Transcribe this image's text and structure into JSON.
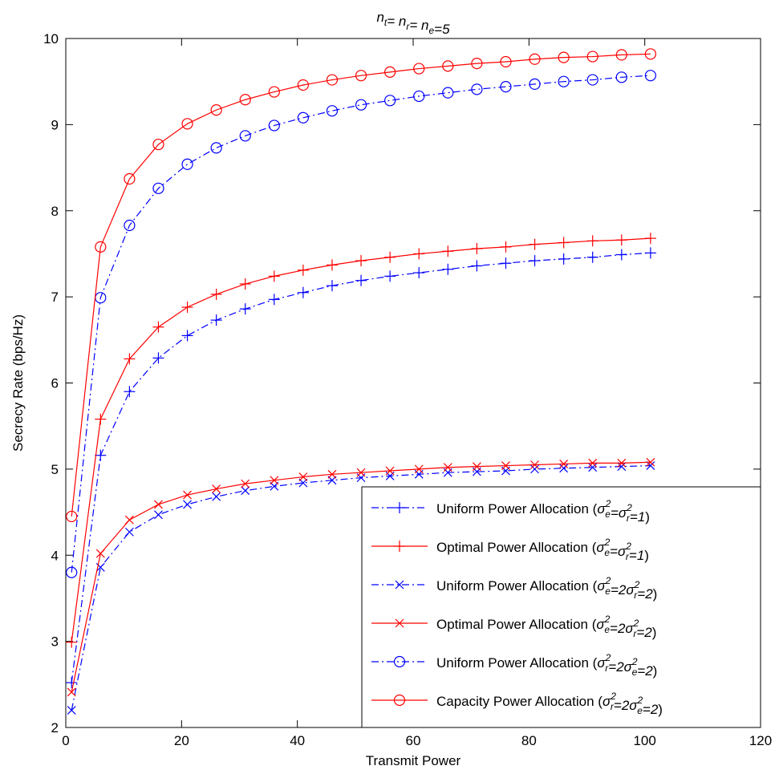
{
  "chart_data": {
    "type": "line",
    "title": {
      "main": "n",
      "parts": [
        {
          "t": "n"
        },
        {
          "sub": "t"
        },
        {
          "t": "= n"
        },
        {
          "sub": "r"
        },
        {
          "t": "= n"
        },
        {
          "sub": "e"
        },
        {
          "t": "=5"
        }
      ]
    },
    "xlabel": "Transmit Power",
    "ylabel": "Secrecy Rate (bps/Hz)",
    "xlim": [
      0,
      120
    ],
    "ylim": [
      2,
      10
    ],
    "xticks": [
      0,
      20,
      40,
      60,
      80,
      100,
      120
    ],
    "yticks": [
      2,
      3,
      4,
      5,
      6,
      7,
      8,
      9,
      10
    ],
    "grid": false,
    "legend_position": "bottom-right",
    "x": [
      1,
      6,
      11,
      16,
      21,
      26,
      31,
      36,
      41,
      46,
      51,
      56,
      61,
      66,
      71,
      76,
      81,
      86,
      91,
      96,
      101
    ],
    "series": [
      {
        "label_prefix": "Uniform Power Allocation (",
        "label_math": [
          {
            "t": "σ"
          },
          {
            "sub": "e",
            "sup": "2"
          },
          {
            "t": "=σ"
          },
          {
            "sub": "r",
            "sup": "2"
          },
          {
            "t": "=1"
          }
        ],
        "label_suffix": ")",
        "color": "#0000ff",
        "dash": "dashdot",
        "marker": "plus",
        "values": [
          2.52,
          5.16,
          5.9,
          6.29,
          6.55,
          6.73,
          6.86,
          6.97,
          7.05,
          7.13,
          7.19,
          7.24,
          7.28,
          7.32,
          7.36,
          7.39,
          7.42,
          7.44,
          7.46,
          7.49,
          7.51
        ]
      },
      {
        "label_prefix": "Optimal Power Allocation (",
        "label_math": [
          {
            "t": "σ"
          },
          {
            "sub": "e",
            "sup": "2"
          },
          {
            "t": "=σ"
          },
          {
            "sub": "r",
            "sup": "2"
          },
          {
            "t": "=1"
          }
        ],
        "label_suffix": ")",
        "color": "#ff0000",
        "dash": "solid",
        "marker": "plus",
        "values": [
          2.99,
          5.58,
          6.28,
          6.65,
          6.88,
          7.03,
          7.15,
          7.24,
          7.31,
          7.37,
          7.42,
          7.46,
          7.5,
          7.53,
          7.56,
          7.58,
          7.61,
          7.63,
          7.65,
          7.66,
          7.68
        ]
      },
      {
        "label_prefix": "Uniform Power Allocation (",
        "label_math": [
          {
            "t": "σ"
          },
          {
            "sub": "e",
            "sup": "2"
          },
          {
            "t": "=2σ"
          },
          {
            "sub": "r",
            "sup": "2"
          },
          {
            "t": "=2"
          }
        ],
        "label_suffix": ")",
        "color": "#0000ff",
        "dash": "dashdot",
        "marker": "x",
        "values": [
          2.2,
          3.86,
          4.27,
          4.47,
          4.59,
          4.68,
          4.75,
          4.8,
          4.84,
          4.87,
          4.9,
          4.92,
          4.94,
          4.96,
          4.97,
          4.98,
          5.0,
          5.01,
          5.02,
          5.03,
          5.04
        ]
      },
      {
        "label_prefix": "Optimal Power Allocation (",
        "label_math": [
          {
            "t": "σ"
          },
          {
            "sub": "e",
            "sup": "2"
          },
          {
            "t": "=2σ"
          },
          {
            "sub": "r",
            "sup": "2"
          },
          {
            "t": "=2"
          }
        ],
        "label_suffix": ")",
        "color": "#ff0000",
        "dash": "solid",
        "marker": "x",
        "values": [
          2.41,
          4.02,
          4.41,
          4.59,
          4.7,
          4.77,
          4.83,
          4.87,
          4.91,
          4.94,
          4.96,
          4.98,
          5.0,
          5.02,
          5.03,
          5.04,
          5.05,
          5.06,
          5.07,
          5.07,
          5.08
        ]
      },
      {
        "label_prefix": "Uniform Power Allocation (",
        "label_math": [
          {
            "t": "σ"
          },
          {
            "sub": "r",
            "sup": "2"
          },
          {
            "t": "=2σ"
          },
          {
            "sub": "e",
            "sup": "2"
          },
          {
            "t": "=2"
          }
        ],
        "label_suffix": ")",
        "color": "#0000ff",
        "dash": "dashdot",
        "marker": "circle",
        "values": [
          3.8,
          6.99,
          7.83,
          8.26,
          8.54,
          8.73,
          8.87,
          8.99,
          9.08,
          9.16,
          9.23,
          9.28,
          9.33,
          9.37,
          9.41,
          9.44,
          9.47,
          9.5,
          9.52,
          9.55,
          9.57
        ]
      },
      {
        "label_prefix": "Capacity Power Allocation (",
        "label_math": [
          {
            "t": "σ"
          },
          {
            "sub": "r",
            "sup": "2"
          },
          {
            "t": "=2σ"
          },
          {
            "sub": "e",
            "sup": "2"
          },
          {
            "t": "=2"
          }
        ],
        "label_suffix": ")",
        "color": "#ff0000",
        "dash": "solid",
        "marker": "circle",
        "values": [
          4.45,
          7.58,
          8.37,
          8.77,
          9.01,
          9.17,
          9.29,
          9.38,
          9.46,
          9.52,
          9.57,
          9.61,
          9.65,
          9.68,
          9.71,
          9.73,
          9.76,
          9.78,
          9.79,
          9.81,
          9.82
        ]
      }
    ]
  }
}
